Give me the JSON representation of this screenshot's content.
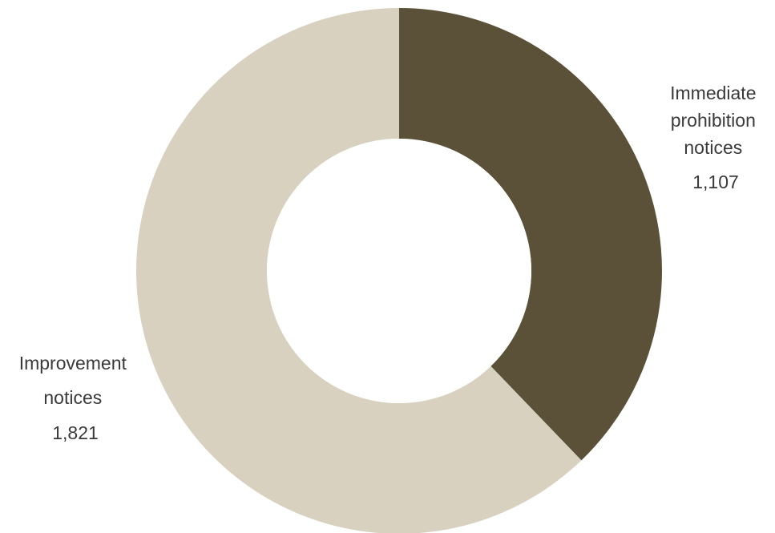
{
  "chart_data": {
    "type": "pie",
    "variant": "donut",
    "start_angle_deg": 0,
    "direction": "clockwise",
    "slices": [
      {
        "label_lines": [
          "Immediate",
          "prohibition",
          "notices"
        ],
        "value": 1107,
        "value_label": "1,107",
        "color": "#5b5138"
      },
      {
        "label_lines": [
          "Improvement",
          "notices"
        ],
        "value": 1821,
        "value_label": "1,821",
        "color": "#d8d1c0"
      }
    ]
  }
}
